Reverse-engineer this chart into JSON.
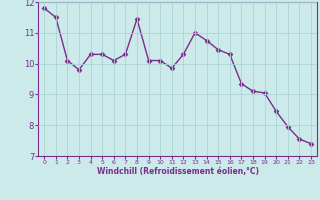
{
  "x": [
    0,
    1,
    2,
    3,
    4,
    5,
    6,
    7,
    8,
    9,
    10,
    11,
    12,
    13,
    14,
    15,
    16,
    17,
    18,
    19,
    20,
    21,
    22,
    23
  ],
  "y": [
    11.8,
    11.5,
    10.1,
    9.8,
    10.3,
    10.3,
    10.1,
    10.3,
    11.45,
    10.1,
    10.1,
    9.85,
    10.3,
    11.0,
    10.75,
    10.45,
    10.3,
    9.35,
    9.1,
    9.05,
    8.45,
    7.95,
    7.55,
    7.4
  ],
  "line_color": "#7b2d8b",
  "marker": "D",
  "marker_size": 2.5,
  "bg_color": "#cceaea",
  "grid_color": "#aad4d4",
  "xlabel": "Windchill (Refroidissement éolien,°C)",
  "xlabel_color": "#7b2d8b",
  "tick_color": "#7b2d8b",
  "ylim": [
    7,
    12
  ],
  "yticks": [
    7,
    8,
    9,
    10,
    11,
    12
  ],
  "xlim": [
    -0.5,
    23.5
  ],
  "xticks": [
    0,
    1,
    2,
    3,
    4,
    5,
    6,
    7,
    8,
    9,
    10,
    11,
    12,
    13,
    14,
    15,
    16,
    17,
    18,
    19,
    20,
    21,
    22,
    23
  ],
  "spine_color": "#7b2d8b",
  "linewidth": 1.0
}
